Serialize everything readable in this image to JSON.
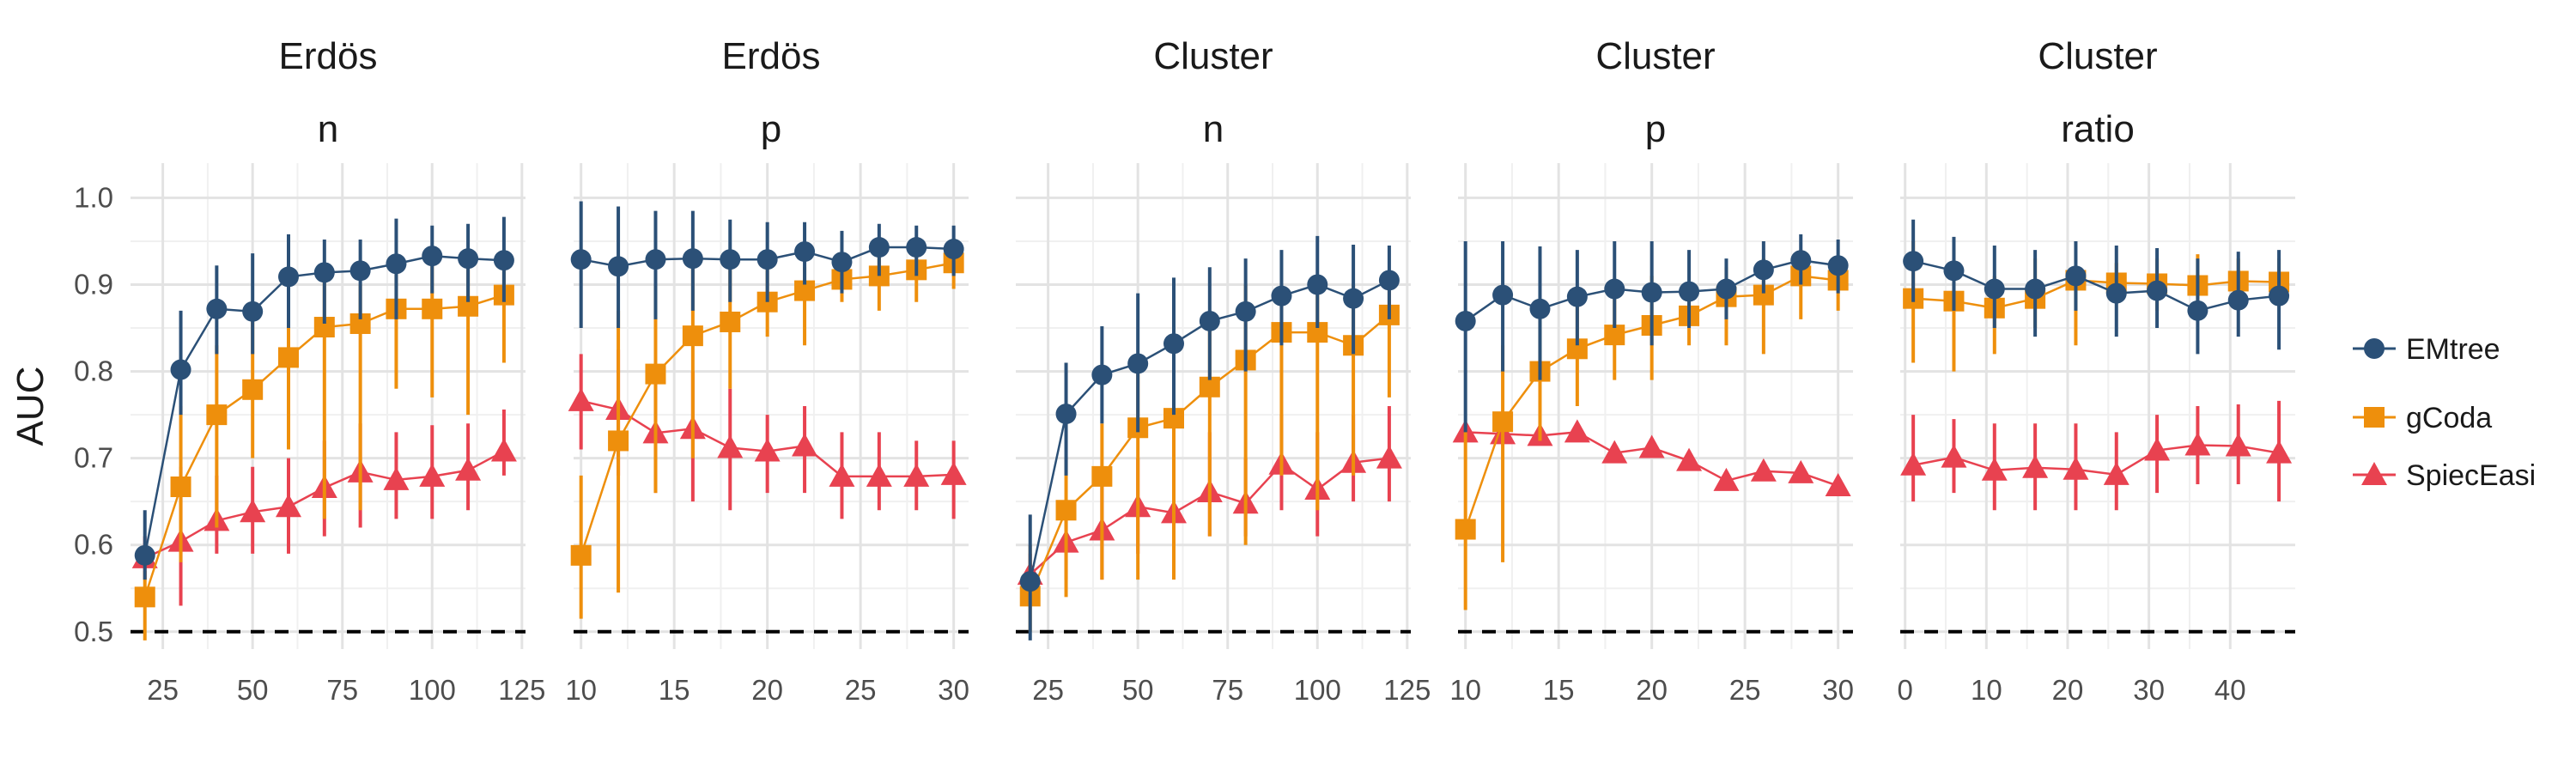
{
  "chart_data": {
    "type": "line",
    "ylabel": "AUC",
    "ylim": [
      0.48,
      1.04
    ],
    "yticks": [
      0.5,
      0.6,
      0.7,
      0.8,
      0.9,
      1.0
    ],
    "ytick_labels": [
      "0.5",
      "0.6",
      "0.7",
      "0.8",
      "0.9",
      "1.0"
    ],
    "reference_line": 0.5,
    "legend": {
      "position": "right",
      "entries": [
        {
          "name": "EMtree",
          "color": "#2b5077",
          "marker": "circle"
        },
        {
          "name": "gCoda",
          "color": "#ee8f0c",
          "marker": "square"
        },
        {
          "name": "SpiecEasi",
          "color": "#e84250",
          "marker": "triangle"
        }
      ]
    },
    "panels": [
      {
        "strip_top": "Erdös",
        "strip_bottom": "n",
        "xlim": [
          16,
          126
        ],
        "xticks": [
          25,
          50,
          75,
          100,
          125
        ],
        "xtick_labels": [
          "25",
          "50",
          "75",
          "100",
          "125"
        ],
        "x": [
          20,
          30,
          40,
          50,
          60,
          70,
          80,
          90,
          100,
          110,
          120
        ],
        "series": [
          {
            "name": "EMtree",
            "y": [
              0.588,
              0.802,
              0.872,
              0.869,
              0.909,
              0.914,
              0.916,
              0.924,
              0.933,
              0.93,
              0.928
            ],
            "low": [
              0.56,
              0.75,
              0.82,
              0.82,
              0.85,
              0.855,
              0.86,
              0.86,
              0.89,
              0.88,
              0.88
            ],
            "high": [
              0.64,
              0.87,
              0.922,
              0.936,
              0.958,
              0.952,
              0.952,
              0.976,
              0.968,
              0.97,
              0.978
            ]
          },
          {
            "name": "gCoda",
            "y": [
              0.54,
              0.667,
              0.75,
              0.779,
              0.816,
              0.851,
              0.855,
              0.872,
              0.872,
              0.875,
              0.888
            ],
            "low": [
              0.49,
              0.58,
              0.62,
              0.7,
              0.71,
              0.63,
              0.64,
              0.78,
              0.77,
              0.75,
              0.81
            ],
            "high": [
              0.57,
              0.76,
              0.83,
              0.87,
              0.88,
              0.922,
              0.9,
              0.93,
              0.932,
              0.92,
              0.93
            ]
          },
          {
            "name": "SpiecEasi",
            "y": [
              0.585,
              0.604,
              0.628,
              0.638,
              0.644,
              0.666,
              0.684,
              0.675,
              0.679,
              0.686,
              0.708
            ],
            "low": [
              0.56,
              0.53,
              0.59,
              0.59,
              0.59,
              0.61,
              0.62,
              0.63,
              0.63,
              0.64,
              0.68
            ],
            "high": [
              0.61,
              0.69,
              0.68,
              0.69,
              0.7,
              0.72,
              0.74,
              0.73,
              0.738,
              0.74,
              0.756
            ]
          }
        ]
      },
      {
        "strip_top": "Erdös",
        "strip_bottom": "p",
        "xlim": [
          9.6,
          30.8
        ],
        "xticks": [
          10,
          15,
          20,
          25,
          30
        ],
        "xtick_labels": [
          "10",
          "15",
          "20",
          "25",
          "30"
        ],
        "x": [
          10,
          12,
          14,
          16,
          18,
          20,
          22,
          24,
          26,
          28,
          30
        ],
        "series": [
          {
            "name": "EMtree",
            "y": [
              0.929,
              0.921,
              0.929,
              0.93,
              0.929,
              0.929,
              0.938,
              0.926,
              0.943,
              0.943,
              0.941
            ],
            "low": [
              0.85,
              0.85,
              0.86,
              0.87,
              0.88,
              0.88,
              0.9,
              0.89,
              0.91,
              0.91,
              0.91
            ],
            "high": [
              0.996,
              0.99,
              0.985,
              0.985,
              0.975,
              0.972,
              0.972,
              0.962,
              0.97,
              0.968,
              0.968
            ]
          },
          {
            "name": "gCoda",
            "y": [
              0.588,
              0.72,
              0.797,
              0.841,
              0.857,
              0.88,
              0.893,
              0.906,
              0.91,
              0.917,
              0.925
            ],
            "low": [
              0.515,
              0.545,
              0.66,
              0.7,
              0.78,
              0.84,
              0.83,
              0.88,
              0.87,
              0.88,
              0.895
            ],
            "high": [
              0.68,
              0.87,
              0.9,
              0.94,
              0.93,
              0.93,
              0.92,
              0.93,
              0.94,
              0.945,
              0.945
            ]
          },
          {
            "name": "SpiecEasi",
            "y": [
              0.766,
              0.756,
              0.729,
              0.734,
              0.712,
              0.708,
              0.714,
              0.679,
              0.679,
              0.679,
              0.681
            ],
            "low": [
              0.71,
              0.68,
              0.66,
              0.65,
              0.64,
              0.66,
              0.66,
              0.63,
              0.64,
              0.64,
              0.63
            ],
            "high": [
              0.82,
              0.825,
              0.79,
              0.8,
              0.78,
              0.75,
              0.76,
              0.73,
              0.73,
              0.72,
              0.72
            ]
          }
        ]
      },
      {
        "strip_top": "Cluster",
        "strip_bottom": "n",
        "xlim": [
          16,
          126
        ],
        "xticks": [
          25,
          50,
          75,
          100,
          125
        ],
        "xtick_labels": [
          "25",
          "50",
          "75",
          "100",
          "125"
        ],
        "x": [
          20,
          30,
          40,
          50,
          60,
          70,
          80,
          90,
          100,
          110,
          120
        ],
        "series": [
          {
            "name": "EMtree",
            "y": [
              0.558,
              0.751,
              0.796,
              0.809,
              0.832,
              0.858,
              0.869,
              0.887,
              0.9,
              0.884,
              0.905
            ],
            "low": [
              0.49,
              0.68,
              0.74,
              0.73,
              0.75,
              0.79,
              0.8,
              0.83,
              0.85,
              0.82,
              0.86
            ],
            "high": [
              0.635,
              0.81,
              0.852,
              0.89,
              0.908,
              0.92,
              0.93,
              0.94,
              0.956,
              0.946,
              0.945
            ]
          },
          {
            "name": "gCoda",
            "y": [
              0.541,
              0.64,
              0.679,
              0.735,
              0.746,
              0.782,
              0.813,
              0.845,
              0.845,
              0.83,
              0.865
            ],
            "low": [
              0.5,
              0.54,
              0.56,
              0.56,
              0.56,
              0.61,
              0.6,
              0.68,
              0.64,
              0.68,
              0.77
            ],
            "high": [
              0.6,
              0.7,
              0.74,
              0.8,
              0.82,
              0.86,
              0.9,
              0.9,
              0.91,
              0.9,
              0.91
            ]
          },
          {
            "name": "SpiecEasi",
            "y": [
              0.566,
              0.603,
              0.617,
              0.644,
              0.637,
              0.661,
              0.648,
              0.693,
              0.664,
              0.695,
              0.7
            ],
            "low": [
              0.54,
              0.56,
              0.56,
              0.59,
              0.57,
              0.61,
              0.61,
              0.64,
              0.61,
              0.65,
              0.65
            ],
            "high": [
              0.59,
              0.65,
              0.68,
              0.7,
              0.7,
              0.73,
              0.7,
              0.75,
              0.73,
              0.75,
              0.76
            ]
          }
        ]
      },
      {
        "strip_top": "Cluster",
        "strip_bottom": "p",
        "xlim": [
          9.6,
          30.8
        ],
        "xticks": [
          10,
          15,
          20,
          25,
          30
        ],
        "xtick_labels": [
          "10",
          "15",
          "20",
          "25",
          "30"
        ],
        "x": [
          10,
          12,
          14,
          16,
          18,
          20,
          22,
          24,
          26,
          28,
          30
        ],
        "series": [
          {
            "name": "EMtree",
            "y": [
              0.858,
              0.888,
              0.872,
              0.886,
              0.895,
              0.891,
              0.892,
              0.895,
              0.917,
              0.928,
              0.922
            ],
            "low": [
              0.73,
              0.8,
              0.79,
              0.83,
              0.85,
              0.83,
              0.85,
              0.86,
              0.89,
              0.9,
              0.89
            ],
            "high": [
              0.95,
              0.95,
              0.944,
              0.94,
              0.95,
              0.95,
              0.94,
              0.93,
              0.95,
              0.958,
              0.952
            ]
          },
          {
            "name": "gCoda",
            "y": [
              0.618,
              0.742,
              0.8,
              0.826,
              0.842,
              0.853,
              0.864,
              0.886,
              0.888,
              0.91,
              0.905
            ],
            "low": [
              0.525,
              0.58,
              0.72,
              0.76,
              0.79,
              0.79,
              0.83,
              0.83,
              0.82,
              0.86,
              0.87
            ],
            "high": [
              0.73,
              0.83,
              0.88,
              0.88,
              0.89,
              0.91,
              0.9,
              0.92,
              0.93,
              0.94,
              0.93
            ]
          },
          {
            "name": "SpiecEasi",
            "y": [
              0.73,
              0.728,
              0.726,
              0.73,
              0.706,
              0.712,
              0.697,
              0.674,
              0.685,
              0.683,
              0.668
            ]
          }
        ]
      },
      {
        "strip_top": "Cluster",
        "strip_bottom": "ratio",
        "xlim": [
          -0.6,
          48
        ],
        "xticks": [
          0,
          10,
          20,
          30,
          40
        ],
        "xtick_labels": [
          "0",
          "10",
          "20",
          "30",
          "40"
        ],
        "x": [
          1,
          6,
          11,
          16,
          21,
          26,
          31,
          36,
          41,
          46
        ],
        "series": [
          {
            "name": "EMtree",
            "y": [
              0.927,
              0.916,
              0.895,
              0.895,
              0.91,
              0.89,
              0.893,
              0.87,
              0.882,
              0.887
            ],
            "low": [
              0.88,
              0.87,
              0.85,
              0.84,
              0.87,
              0.84,
              0.85,
              0.82,
              0.84,
              0.825
            ],
            "high": [
              0.975,
              0.955,
              0.945,
              0.94,
              0.95,
              0.945,
              0.942,
              0.93,
              0.938,
              0.94
            ]
          },
          {
            "name": "gCoda",
            "y": [
              0.884,
              0.881,
              0.873,
              0.884,
              0.905,
              0.902,
              0.901,
              0.899,
              0.904,
              0.903
            ],
            "low": [
              0.81,
              0.8,
              0.82,
              0.85,
              0.83,
              0.88,
              0.87,
              0.87,
              0.88,
              0.88
            ],
            "high": [
              0.95,
              0.94,
              0.91,
              0.93,
              0.92,
              0.925,
              0.93,
              0.935,
              0.93,
              0.93
            ]
          },
          {
            "name": "SpiecEasi",
            "y": [
              0.692,
              0.701,
              0.686,
              0.689,
              0.687,
              0.681,
              0.709,
              0.715,
              0.714,
              0.706
            ],
            "low": [
              0.65,
              0.66,
              0.64,
              0.64,
              0.64,
              0.64,
              0.66,
              0.67,
              0.67,
              0.65
            ],
            "high": [
              0.75,
              0.745,
              0.74,
              0.74,
              0.74,
              0.73,
              0.75,
              0.76,
              0.762,
              0.766
            ]
          }
        ]
      }
    ]
  }
}
